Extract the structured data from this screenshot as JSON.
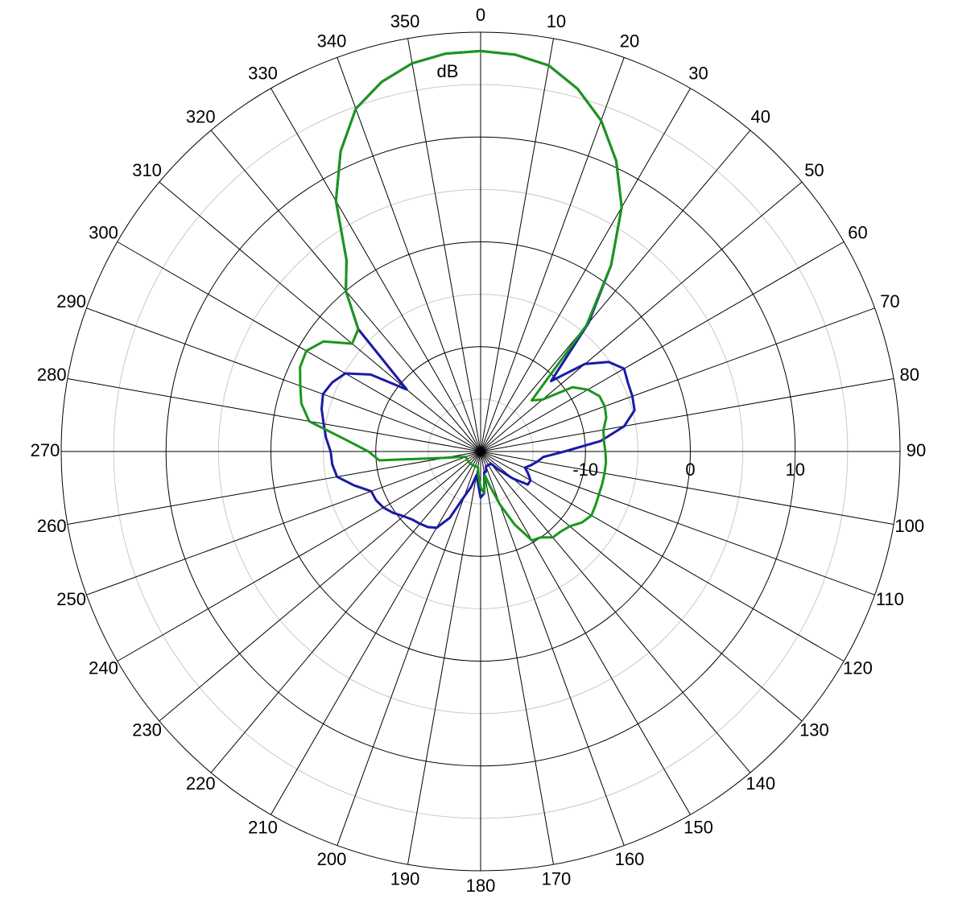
{
  "chart_data": {
    "type": "polar",
    "y_label": "dB",
    "ylim": [
      -20,
      20
    ],
    "yticks": [
      -10,
      0,
      10
    ],
    "xticks": [
      0,
      10,
      20,
      30,
      40,
      50,
      60,
      70,
      80,
      90,
      100,
      110,
      120,
      130,
      140,
      150,
      160,
      170,
      180,
      190,
      200,
      210,
      220,
      230,
      240,
      250,
      260,
      270,
      280,
      290,
      300,
      310,
      320,
      330,
      340,
      350
    ],
    "x": [
      0,
      5,
      10,
      15,
      20,
      25,
      30,
      35,
      40,
      45,
      50,
      55,
      60,
      65,
      70,
      75,
      80,
      85,
      90,
      95,
      100,
      105,
      110,
      115,
      120,
      125,
      130,
      135,
      140,
      145,
      150,
      155,
      160,
      165,
      170,
      175,
      180,
      185,
      190,
      195,
      200,
      205,
      210,
      215,
      220,
      225,
      230,
      235,
      240,
      245,
      250,
      255,
      260,
      265,
      270,
      275,
      280,
      285,
      290,
      295,
      300,
      305,
      310,
      315,
      320,
      325,
      330,
      335,
      340,
      345,
      350,
      355
    ],
    "series": [
      {
        "color": "#1a1aa8",
        "values": [
          18.2,
          18.0,
          17.4,
          15.8,
          13.6,
          10.6,
          6.9,
          1.7,
          -4.0,
          -10.5,
          -7.0,
          -5.1,
          -4.2,
          -4.5,
          -4.6,
          -4.8,
          -6.1,
          -8.5,
          -12.0,
          -14.0,
          -14.5,
          -15.0,
          -15.5,
          -15.0,
          -14.5,
          -14.5,
          -16.0,
          -17.5,
          -18.5,
          -18.5,
          -18.5,
          -18.5,
          -18.5,
          -18.0,
          -18.0,
          -16.0,
          -15.6,
          -17.0,
          -17.7,
          -16.5,
          -15.4,
          -13.0,
          -11.6,
          -11.2,
          -11.0,
          -10.8,
          -10.4,
          -9.8,
          -9.3,
          -9.0,
          -8.9,
          -7.5,
          -6.1,
          -5.8,
          -5.7,
          -5.2,
          -4.8,
          -4.3,
          -4.0,
          -4.4,
          -5.1,
          -7.2,
          -10.8,
          -3.5,
          0.0,
          2.3,
          7.6,
          11.6,
          14.8,
          16.5,
          17.6,
          18.1
        ]
      },
      {
        "color": "#1b961b",
        "values": [
          18.2,
          18.0,
          17.4,
          15.8,
          13.6,
          10.6,
          6.9,
          1.7,
          -4.3,
          -13.1,
          -12.3,
          -9.3,
          -8.2,
          -7.5,
          -7.4,
          -7.6,
          -8.1,
          -8.2,
          -8.1,
          -8.0,
          -8.0,
          -8.0,
          -8.0,
          -7.9,
          -7.8,
          -8.2,
          -8.9,
          -9.2,
          -9.3,
          -10.0,
          -10.2,
          -12.3,
          -14.6,
          -16.6,
          -17.7,
          -16.0,
          -16.6,
          -17.7,
          -18.5,
          -18.5,
          -18.5,
          -18.5,
          -18.5,
          -18.5,
          -18.5,
          -18.5,
          -18.5,
          -18.5,
          -18.5,
          -18.5,
          -18.5,
          -18.0,
          -16.5,
          -10.3,
          -9.3,
          -7.1,
          -3.4,
          -2.3,
          -1.7,
          -1.0,
          -0.8,
          -1.7,
          -4.0,
          -3.5,
          0.0,
          2.3,
          7.6,
          11.6,
          14.8,
          16.5,
          17.6,
          18.1
        ]
      }
    ]
  }
}
